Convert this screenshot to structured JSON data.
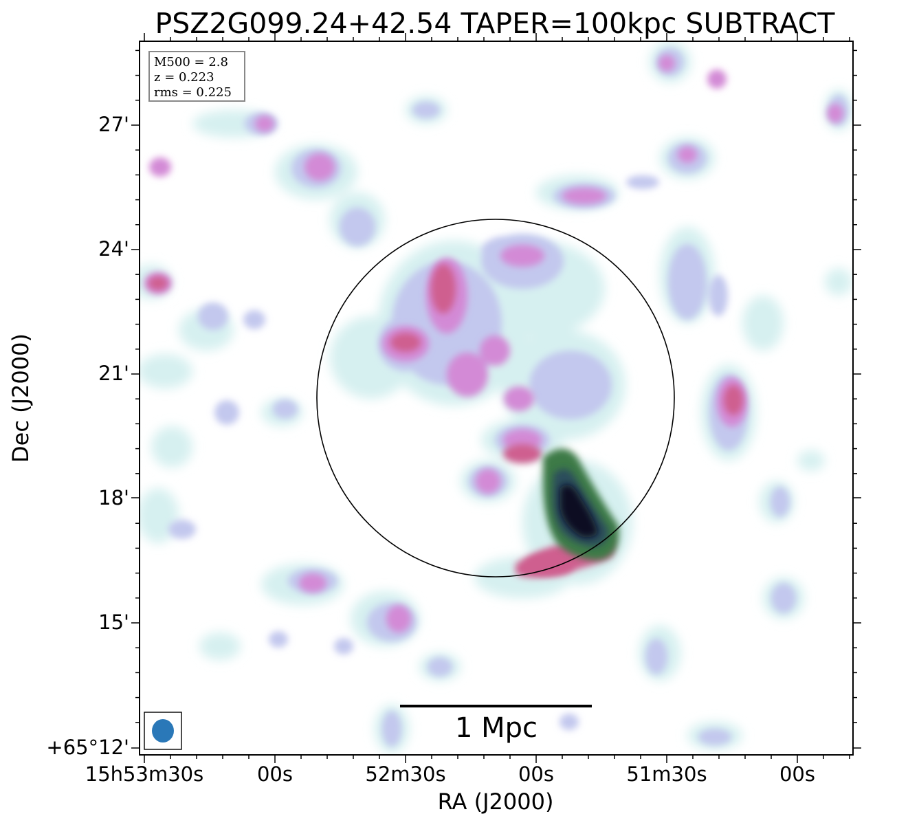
{
  "title": "PSZ2G099.24+42.54 TAPER=100kpc SUBTRACT",
  "info": {
    "mass": "M500 = 2.8",
    "redshift": "z = 0.223",
    "rms": "rms = 0.225"
  },
  "scalebar": {
    "label": "1 Mpc"
  },
  "axes": {
    "xlabel": "RA (J2000)",
    "ylabel": "Dec (J2000)",
    "xticks": [
      "15h53m30s",
      "00s",
      "52m30s",
      "00s",
      "51m30s",
      "00s"
    ],
    "yticks": [
      "27'",
      "24'",
      "21'",
      "18'",
      "15'",
      "+65°12'"
    ]
  },
  "colors": {
    "faint": "#d6f0f0",
    "low": "#c3c8ee",
    "mid": "#d38ad6",
    "high": "#cf5f8f",
    "peak_green": "#3c7a46",
    "peak_core": "#0a0820",
    "beam": "#2a78b8"
  }
}
